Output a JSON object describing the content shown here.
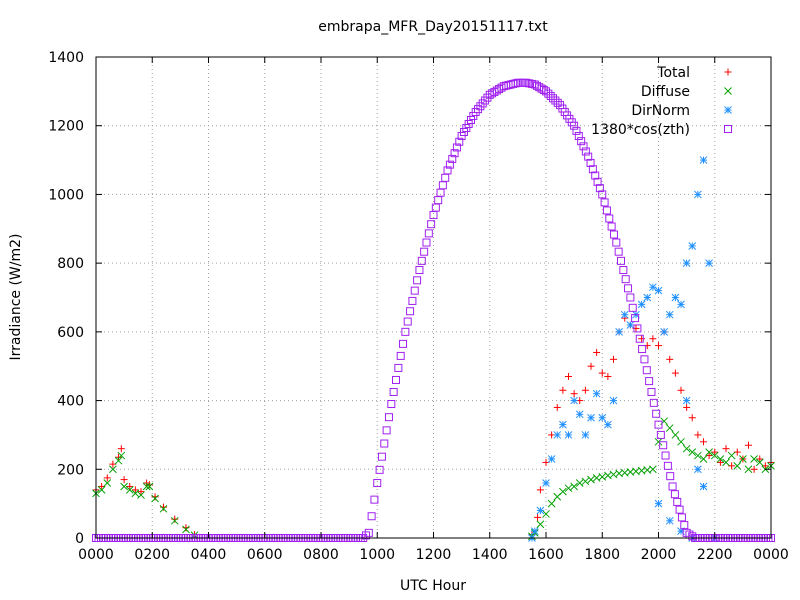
{
  "chart_data": {
    "type": "scatter",
    "title": "embrapa_MFR_Day20151117.txt",
    "xlabel": "UTC Hour",
    "ylabel": "Irradiance (W/m2)",
    "xlim": [
      0,
      2400
    ],
    "ylim": [
      0,
      1400
    ],
    "x_tick_labels": [
      "0000",
      "0200",
      "0400",
      "0600",
      "0800",
      "1000",
      "1200",
      "1400",
      "1600",
      "1800",
      "2000",
      "2200",
      "0000"
    ],
    "y_tick_labels": [
      "0",
      "200",
      "400",
      "600",
      "800",
      "1000",
      "1200",
      "1400"
    ],
    "grid": true,
    "legend_position": "top-right",
    "series": [
      {
        "name": "Total",
        "marker": "plus",
        "color": "#ff0000",
        "points": [
          [
            0,
            140
          ],
          [
            20,
            150
          ],
          [
            40,
            175
          ],
          [
            60,
            215
          ],
          [
            80,
            235
          ],
          [
            90,
            260
          ],
          [
            100,
            170
          ],
          [
            120,
            150
          ],
          [
            140,
            140
          ],
          [
            160,
            135
          ],
          [
            180,
            160
          ],
          [
            190,
            155
          ],
          [
            210,
            120
          ],
          [
            240,
            90
          ],
          [
            280,
            55
          ],
          [
            320,
            30
          ],
          [
            350,
            10
          ],
          [
            1550,
            10
          ],
          [
            1570,
            60
          ],
          [
            1580,
            140
          ],
          [
            1600,
            220
          ],
          [
            1620,
            300
          ],
          [
            1640,
            380
          ],
          [
            1660,
            430
          ],
          [
            1680,
            470
          ],
          [
            1700,
            420
          ],
          [
            1720,
            400
          ],
          [
            1740,
            430
          ],
          [
            1760,
            500
          ],
          [
            1780,
            540
          ],
          [
            1800,
            480
          ],
          [
            1820,
            470
          ],
          [
            1840,
            520
          ],
          [
            1860,
            600
          ],
          [
            1880,
            640
          ],
          [
            1900,
            620
          ],
          [
            1920,
            610
          ],
          [
            1940,
            580
          ],
          [
            1960,
            560
          ],
          [
            1980,
            580
          ],
          [
            2000,
            560
          ],
          [
            2020,
            600
          ],
          [
            2040,
            520
          ],
          [
            2060,
            480
          ],
          [
            2080,
            430
          ],
          [
            2100,
            380
          ],
          [
            2120,
            350
          ],
          [
            2140,
            300
          ],
          [
            2160,
            280
          ],
          [
            2180,
            240
          ],
          [
            2200,
            250
          ],
          [
            2220,
            220
          ],
          [
            2240,
            260
          ],
          [
            2260,
            210
          ],
          [
            2280,
            250
          ],
          [
            2300,
            230
          ],
          [
            2320,
            270
          ],
          [
            2340,
            200
          ],
          [
            2360,
            230
          ],
          [
            2380,
            210
          ],
          [
            2400,
            220
          ]
        ]
      },
      {
        "name": "Diffuse",
        "marker": "cross",
        "color": "#00a000",
        "points": [
          [
            0,
            130
          ],
          [
            20,
            140
          ],
          [
            40,
            160
          ],
          [
            60,
            200
          ],
          [
            80,
            225
          ],
          [
            90,
            240
          ],
          [
            100,
            150
          ],
          [
            120,
            140
          ],
          [
            140,
            130
          ],
          [
            160,
            125
          ],
          [
            180,
            150
          ],
          [
            190,
            150
          ],
          [
            210,
            115
          ],
          [
            240,
            85
          ],
          [
            280,
            50
          ],
          [
            320,
            25
          ],
          [
            350,
            8
          ],
          [
            1550,
            5
          ],
          [
            1560,
            15
          ],
          [
            1580,
            40
          ],
          [
            1600,
            70
          ],
          [
            1620,
            100
          ],
          [
            1640,
            120
          ],
          [
            1660,
            135
          ],
          [
            1680,
            145
          ],
          [
            1700,
            150
          ],
          [
            1720,
            160
          ],
          [
            1740,
            165
          ],
          [
            1760,
            170
          ],
          [
            1780,
            175
          ],
          [
            1800,
            178
          ],
          [
            1820,
            182
          ],
          [
            1840,
            185
          ],
          [
            1860,
            188
          ],
          [
            1880,
            190
          ],
          [
            1900,
            192
          ],
          [
            1920,
            194
          ],
          [
            1940,
            196
          ],
          [
            1960,
            198
          ],
          [
            1980,
            200
          ],
          [
            2000,
            280
          ],
          [
            2020,
            340
          ],
          [
            2040,
            320
          ],
          [
            2060,
            300
          ],
          [
            2080,
            280
          ],
          [
            2100,
            260
          ],
          [
            2120,
            250
          ],
          [
            2140,
            240
          ],
          [
            2160,
            230
          ],
          [
            2180,
            250
          ],
          [
            2200,
            240
          ],
          [
            2220,
            230
          ],
          [
            2240,
            220
          ],
          [
            2260,
            240
          ],
          [
            2280,
            210
          ],
          [
            2300,
            230
          ],
          [
            2320,
            200
          ],
          [
            2340,
            230
          ],
          [
            2360,
            220
          ],
          [
            2380,
            200
          ],
          [
            2400,
            210
          ]
        ]
      },
      {
        "name": "DirNorm",
        "marker": "star",
        "color": "#2090ff",
        "points": [
          [
            1550,
            0
          ],
          [
            1560,
            20
          ],
          [
            1580,
            80
          ],
          [
            1600,
            160
          ],
          [
            1620,
            230
          ],
          [
            1640,
            300
          ],
          [
            1660,
            330
          ],
          [
            1680,
            300
          ],
          [
            1700,
            400
          ],
          [
            1720,
            360
          ],
          [
            1740,
            300
          ],
          [
            1760,
            350
          ],
          [
            1780,
            420
          ],
          [
            1800,
            350
          ],
          [
            1820,
            330
          ],
          [
            1840,
            400
          ],
          [
            1860,
            600
          ],
          [
            1880,
            650
          ],
          [
            1900,
            620
          ],
          [
            1920,
            650
          ],
          [
            1940,
            680
          ],
          [
            1960,
            700
          ],
          [
            1980,
            730
          ],
          [
            2000,
            720
          ],
          [
            2020,
            600
          ],
          [
            2040,
            650
          ],
          [
            2060,
            700
          ],
          [
            2080,
            680
          ],
          [
            2100,
            800
          ],
          [
            2120,
            850
          ],
          [
            2140,
            1000
          ],
          [
            2160,
            1100
          ],
          [
            2180,
            800
          ],
          [
            2000,
            100
          ],
          [
            2040,
            50
          ],
          [
            2080,
            20
          ],
          [
            2120,
            0
          ],
          [
            2160,
            150
          ],
          [
            2200,
            0
          ],
          [
            2100,
            400
          ],
          [
            2140,
            200
          ]
        ]
      },
      {
        "name": "1380*cos(zth)",
        "marker": "square",
        "color": "#a020f0",
        "points": [
          [
            0,
            0
          ],
          [
            950,
            0
          ],
          [
            970,
            15
          ],
          [
            1000,
            160
          ],
          [
            1050,
            390
          ],
          [
            1100,
            600
          ],
          [
            1150,
            780
          ],
          [
            1200,
            940
          ],
          [
            1250,
            1070
          ],
          [
            1300,
            1170
          ],
          [
            1350,
            1240
          ],
          [
            1400,
            1290
          ],
          [
            1450,
            1315
          ],
          [
            1500,
            1325
          ],
          [
            1530,
            1325
          ],
          [
            1560,
            1320
          ],
          [
            1600,
            1300
          ],
          [
            1650,
            1260
          ],
          [
            1700,
            1200
          ],
          [
            1750,
            1110
          ],
          [
            1800,
            1000
          ],
          [
            1850,
            860
          ],
          [
            1900,
            700
          ],
          [
            1950,
            520
          ],
          [
            2000,
            330
          ],
          [
            2050,
            150
          ],
          [
            2100,
            15
          ],
          [
            2130,
            0
          ],
          [
            2400,
            0
          ]
        ]
      }
    ]
  }
}
